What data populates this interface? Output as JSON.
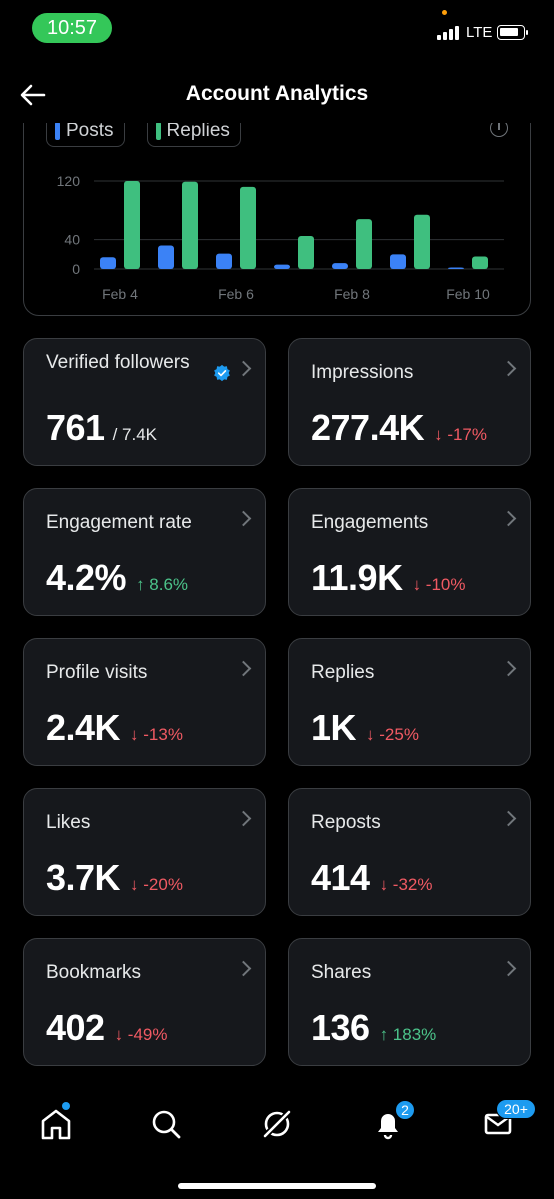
{
  "status_bar": {
    "time": "10:57",
    "network": "LTE"
  },
  "header": {
    "title": "Account Analytics"
  },
  "chart_data": {
    "type": "bar",
    "legend": [
      "Posts",
      "Replies"
    ],
    "y_ticks": [
      "120",
      "40",
      "0"
    ],
    "x_tick_labels": [
      "Feb 4",
      "Feb 6",
      "Feb 8",
      "Feb 10"
    ],
    "categories": [
      "Feb 4",
      "Feb 5",
      "Feb 6",
      "Feb 7",
      "Feb 8",
      "Feb 9",
      "Feb 10"
    ],
    "ylim": [
      0,
      130
    ],
    "series": [
      {
        "name": "Posts",
        "color": "#3b82f6",
        "values": [
          16,
          32,
          21,
          6,
          8,
          20,
          2
        ]
      },
      {
        "name": "Replies",
        "color": "#3fbf7f",
        "values": [
          120,
          119,
          112,
          45,
          68,
          74,
          17
        ]
      }
    ]
  },
  "metrics": [
    {
      "label": "Verified followers",
      "value": "761",
      "sub": "/ 7.4K",
      "change": ""
    },
    {
      "label": "Impressions",
      "value": "277.4K",
      "change": "↓ -17%",
      "direction": "down"
    },
    {
      "label": "Engagement rate",
      "value": "4.2%",
      "change": "↑ 8.6%",
      "direction": "up"
    },
    {
      "label": "Engagements",
      "value": "11.9K",
      "change": "↓ -10%",
      "direction": "down"
    },
    {
      "label": "Profile visits",
      "value": "2.4K",
      "change": "↓ -13%",
      "direction": "down"
    },
    {
      "label": "Replies",
      "value": "1K",
      "change": "↓ -25%",
      "direction": "down"
    },
    {
      "label": "Likes",
      "value": "3.7K",
      "change": "↓ -20%",
      "direction": "down"
    },
    {
      "label": "Reposts",
      "value": "414",
      "change": "↓ -32%",
      "direction": "down"
    },
    {
      "label": "Bookmarks",
      "value": "402",
      "change": "↓ -49%",
      "direction": "down"
    },
    {
      "label": "Shares",
      "value": "136",
      "change": "↑ 183%",
      "direction": "up"
    }
  ],
  "bottom_nav": {
    "notifications_badge": "2",
    "messages_badge": "20+"
  },
  "colors": {
    "accent": "#1d9bf0",
    "down": "#f05a63",
    "up": "#4cc38a",
    "time_pill": "#34c759"
  }
}
